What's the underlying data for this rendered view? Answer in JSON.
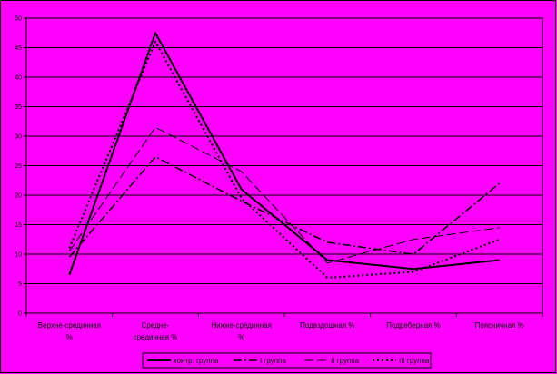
{
  "colors": {
    "plot_background": "#ff00ff",
    "chart_background": "#ff00ff",
    "border": "#000000",
    "gridline": "#000000",
    "series_line": "#000000"
  },
  "chart_data": {
    "type": "line",
    "categories": [
      [
        "Верхне-срединная",
        "%"
      ],
      [
        "Средне-",
        "срединная %"
      ],
      [
        "Нижне-срединная",
        "%"
      ],
      [
        "Подвздошная %"
      ],
      [
        "Подреберная %"
      ],
      [
        "Поясничная %"
      ]
    ],
    "y_ticks": [
      "0",
      "5",
      "10",
      "15",
      "20",
      "25",
      "30",
      "35",
      "40",
      "45",
      "50"
    ],
    "ylim": [
      0,
      50
    ],
    "grid": true,
    "legend_position": "bottom",
    "series": [
      {
        "name": "контр. группа",
        "values": [
          6.5,
          47.5,
          21,
          9,
          7.5,
          9
        ],
        "style": "solid"
      },
      {
        "name": "I группа",
        "values": [
          9.5,
          26.5,
          19,
          12,
          10,
          22
        ],
        "style": "dashdot"
      },
      {
        "name": "II группа",
        "values": [
          10.5,
          31.5,
          24,
          8.5,
          12.5,
          14.5
        ],
        "style": "longdash"
      },
      {
        "name": "III группа",
        "values": [
          11,
          46,
          19.5,
          6,
          7,
          12.5
        ],
        "style": "dotted"
      }
    ]
  }
}
